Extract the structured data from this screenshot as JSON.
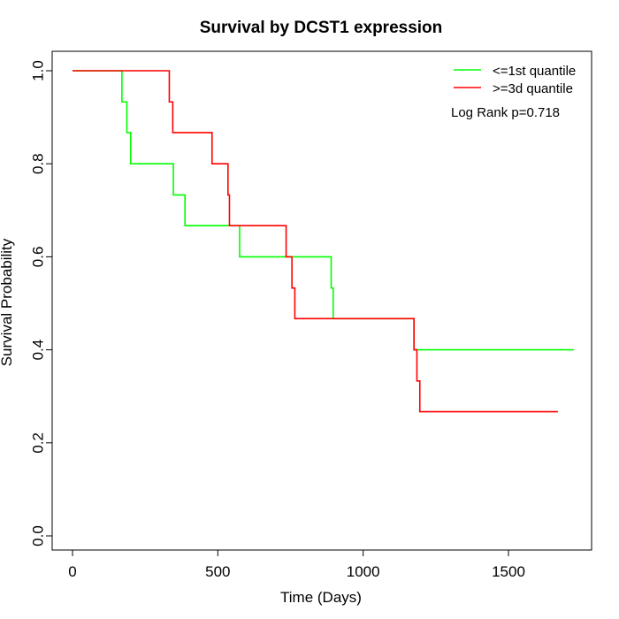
{
  "chart_data": {
    "type": "line",
    "title": "Survival by DCST1 expression",
    "xlabel": "Time (Days)",
    "ylabel": "Survival Probability",
    "xlim": [
      0,
      1730
    ],
    "ylim": [
      0,
      1.0
    ],
    "x_ticks": [
      0,
      500,
      1000,
      1500
    ],
    "y_ticks": [
      0.0,
      0.2,
      0.4,
      0.6,
      0.8,
      1.0
    ],
    "x_tick_labels": [
      "0",
      "500",
      "1000",
      "1500"
    ],
    "y_tick_labels": [
      "0.0",
      "0.2",
      "0.4",
      "0.6",
      "0.8",
      "1.0"
    ],
    "grid": false,
    "legend_position": "top-right",
    "annotation": "Log Rank p=0.718",
    "series": [
      {
        "name": "<=1st quantile",
        "color": "#00ff00",
        "step": true,
        "points": [
          [
            0,
            1.0
          ],
          [
            170,
            1.0
          ],
          [
            170,
            0.933
          ],
          [
            187,
            0.933
          ],
          [
            187,
            0.867
          ],
          [
            200,
            0.867
          ],
          [
            200,
            0.8
          ],
          [
            347,
            0.8
          ],
          [
            347,
            0.733
          ],
          [
            387,
            0.733
          ],
          [
            387,
            0.667
          ],
          [
            575,
            0.667
          ],
          [
            575,
            0.6
          ],
          [
            890,
            0.6
          ],
          [
            890,
            0.533
          ],
          [
            897,
            0.533
          ],
          [
            897,
            0.467
          ],
          [
            1175,
            0.467
          ],
          [
            1175,
            0.4
          ],
          [
            1725,
            0.4
          ]
        ]
      },
      {
        "name": ">=3d quantile",
        "color": "#ff0000",
        "step": true,
        "points": [
          [
            0,
            1.0
          ],
          [
            333,
            1.0
          ],
          [
            333,
            0.933
          ],
          [
            345,
            0.933
          ],
          [
            345,
            0.867
          ],
          [
            480,
            0.867
          ],
          [
            480,
            0.8
          ],
          [
            535,
            0.8
          ],
          [
            535,
            0.733
          ],
          [
            540,
            0.733
          ],
          [
            540,
            0.667
          ],
          [
            735,
            0.667
          ],
          [
            735,
            0.6
          ],
          [
            755,
            0.6
          ],
          [
            755,
            0.533
          ],
          [
            765,
            0.533
          ],
          [
            765,
            0.467
          ],
          [
            1175,
            0.467
          ],
          [
            1175,
            0.4
          ],
          [
            1185,
            0.4
          ],
          [
            1185,
            0.333
          ],
          [
            1195,
            0.333
          ],
          [
            1195,
            0.267
          ],
          [
            1670,
            0.267
          ]
        ]
      }
    ]
  }
}
